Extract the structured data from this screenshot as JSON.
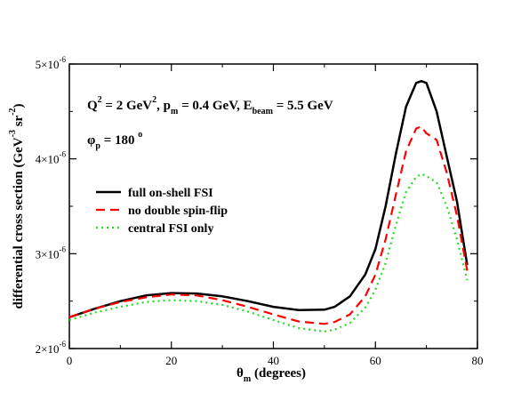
{
  "chart_data": {
    "type": "line",
    "xlabel": {
      "main": "θ",
      "sub": "m",
      "rest": " (degrees)"
    },
    "ylabel": "differential cross section (GeV⁻³ sr⁻²)",
    "xlim": [
      0,
      80
    ],
    "ylim": [
      2e-06,
      5e-06
    ],
    "x_ticks": [
      0,
      20,
      40,
      60,
      80
    ],
    "y_ticks": [
      {
        "value": 2e-06,
        "mantissa": "2×10",
        "exp": "-6"
      },
      {
        "value": 3e-06,
        "mantissa": "3×10",
        "exp": "-6"
      },
      {
        "value": 4e-06,
        "mantissa": "4×10",
        "exp": "-6"
      },
      {
        "value": 5e-06,
        "mantissa": "5×10",
        "exp": "-6"
      }
    ],
    "grid": false,
    "legend_position": "left",
    "annotations": {
      "line1": "Q² = 2 GeV², pₘ = 0.4 GeV, E_beam = 5.5 GeV",
      "line2": "φₚ = 180 °"
    },
    "series": [
      {
        "name": "full on-shell FSI",
        "color": "#000000",
        "dash": "",
        "x": [
          0,
          5,
          10,
          15,
          20,
          25,
          30,
          35,
          40,
          45,
          50,
          52,
          55,
          58,
          60,
          62,
          64,
          66,
          68,
          69,
          70,
          72,
          74,
          76,
          78
        ],
        "y": [
          2.33e-06,
          2.42e-06,
          2.5e-06,
          2.56e-06,
          2.585e-06,
          2.58e-06,
          2.55e-06,
          2.5e-06,
          2.44e-06,
          2.405e-06,
          2.41e-06,
          2.44e-06,
          2.55e-06,
          2.78e-06,
          3.05e-06,
          3.5e-06,
          4.05e-06,
          4.55e-06,
          4.8e-06,
          4.82e-06,
          4.8e-06,
          4.5e-06,
          4.02e-06,
          3.55e-06,
          2.88e-06
        ]
      },
      {
        "name": "no double spin-flip",
        "color": "#ff0000",
        "dash": "10,6",
        "x": [
          0,
          5,
          10,
          15,
          20,
          25,
          30,
          35,
          40,
          45,
          50,
          52,
          55,
          58,
          60,
          62,
          64,
          66,
          68,
          69,
          70,
          72,
          74,
          76,
          78
        ],
        "y": [
          2.33e-06,
          2.42e-06,
          2.49e-06,
          2.54e-06,
          2.57e-06,
          2.56e-06,
          2.51e-06,
          2.44e-06,
          2.36e-06,
          2.285e-06,
          2.26e-06,
          2.28e-06,
          2.36e-06,
          2.55e-06,
          2.78e-06,
          3.15e-06,
          3.62e-06,
          4.08e-06,
          4.32e-06,
          4.34e-06,
          4.27e-06,
          4.2e-06,
          3.85e-06,
          3.4e-06,
          2.82e-06
        ]
      },
      {
        "name": "central FSI only",
        "color": "#22dd22",
        "dash": "2,4",
        "x": [
          0,
          5,
          10,
          15,
          20,
          25,
          30,
          35,
          40,
          45,
          50,
          52,
          55,
          58,
          60,
          62,
          64,
          66,
          68,
          69,
          70,
          72,
          74,
          76,
          78
        ],
        "y": [
          2.3e-06,
          2.38e-06,
          2.44e-06,
          2.49e-06,
          2.51e-06,
          2.5e-06,
          2.46e-06,
          2.39e-06,
          2.3e-06,
          2.215e-06,
          2.18e-06,
          2.2e-06,
          2.27e-06,
          2.43e-06,
          2.62e-06,
          2.9e-06,
          3.3e-06,
          3.65e-06,
          3.81e-06,
          3.84e-06,
          3.82e-06,
          3.75e-06,
          3.5e-06,
          3.15e-06,
          2.72e-06
        ]
      }
    ]
  }
}
